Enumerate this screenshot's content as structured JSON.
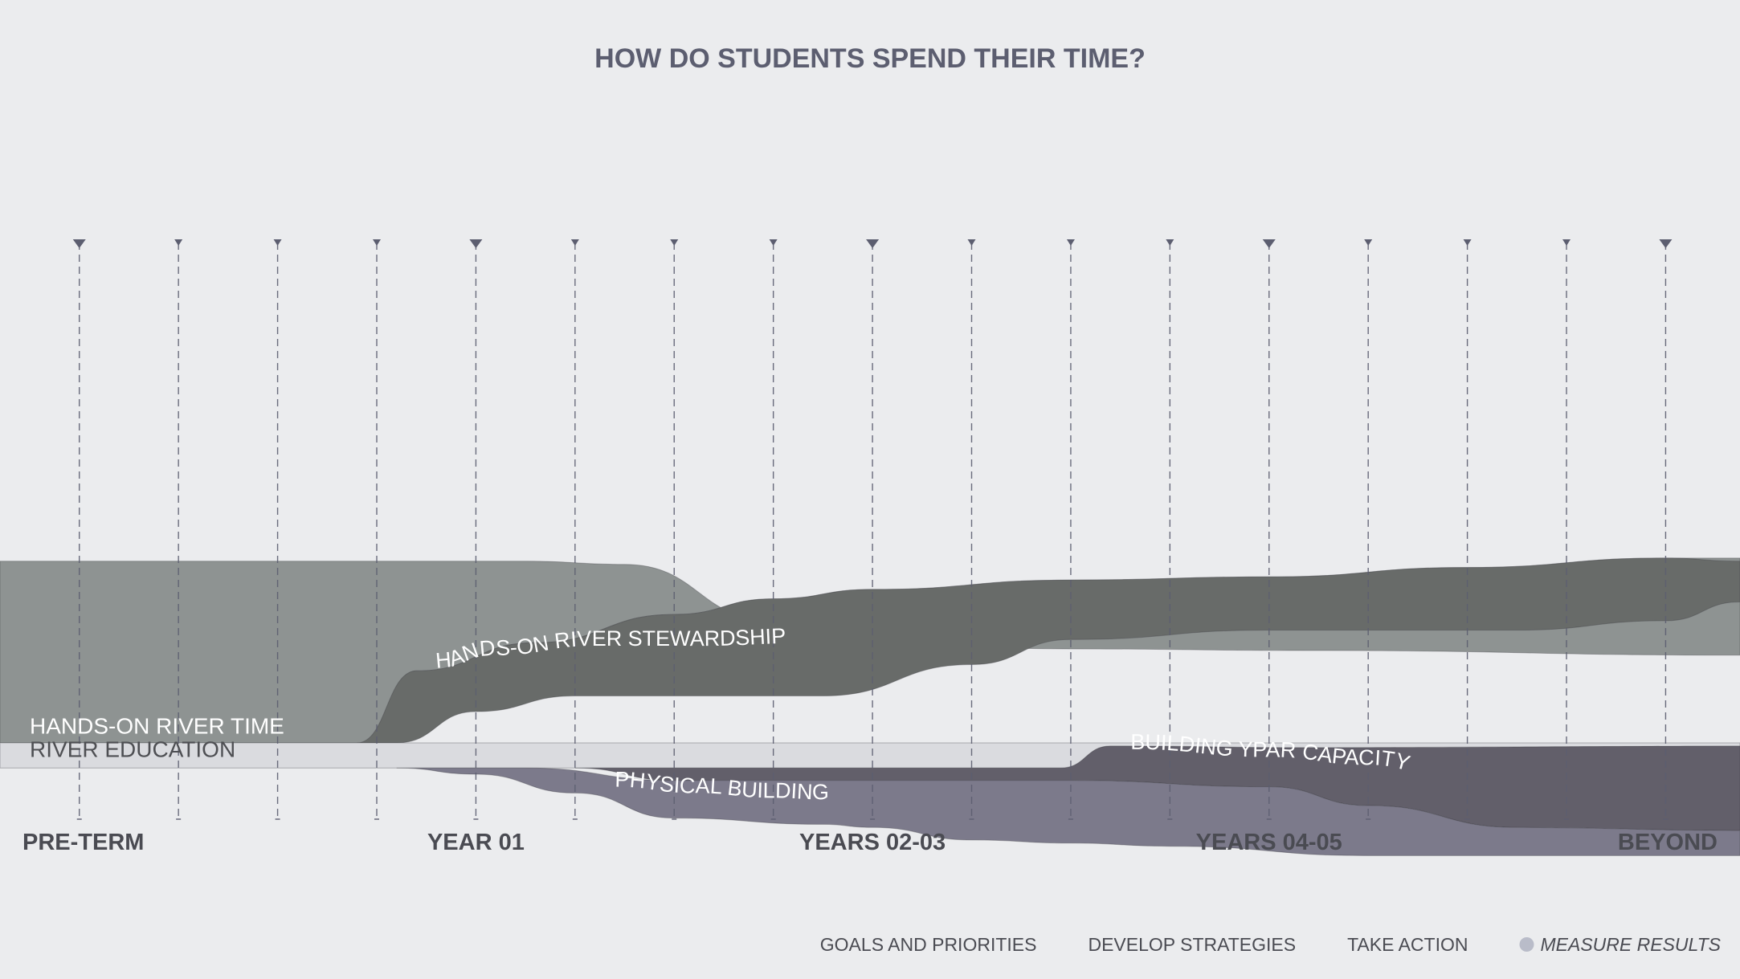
{
  "chart_data": {
    "type": "area",
    "title": "HOW DO STUDENTS SPEND THEIR TIME?",
    "x_labels": [
      {
        "label": "PRE-TERM",
        "x": 0
      },
      {
        "label": "YEAR 01",
        "x": 4
      },
      {
        "label": "YEARS 02-03",
        "x": 8
      },
      {
        "label": "YEARS 04-05",
        "x": 12
      },
      {
        "label": "BEYOND",
        "x": 16
      }
    ],
    "xlim": [
      -0.8,
      16.75
    ],
    "ylim": [
      -1,
      1
    ],
    "series": [
      {
        "name": "HANDS-ON RIVER TIME",
        "color": "#8e9392",
        "text_color": "#ffffff",
        "upper": [
          [
            -0.8,
            0.58
          ],
          [
            4.5,
            0.58
          ],
          [
            5.5,
            0.57
          ],
          [
            7,
            0.39
          ],
          [
            8,
            0.32
          ],
          [
            10,
            0.3
          ],
          [
            12.4,
            0.295
          ],
          [
            16.75,
            0.28
          ]
        ],
        "lower": [
          [
            -0.8,
            0.0
          ],
          [
            2.9,
            0.0
          ],
          [
            3.4,
            0.23
          ],
          [
            4.6,
            0.32
          ],
          [
            6,
            0.41
          ],
          [
            7,
            0.46
          ],
          [
            8,
            0.49
          ],
          [
            10,
            0.52
          ],
          [
            12,
            0.53
          ],
          [
            14,
            0.56
          ],
          [
            16,
            0.59
          ],
          [
            16.75,
            0.59
          ]
        ]
      },
      {
        "name": "HANDS-ON RIVER STEWARDSHIP",
        "color": "#686b69",
        "text_color": "#ffffff",
        "upper": [
          [
            2.8,
            0.0
          ],
          [
            3.4,
            0.23
          ],
          [
            4.6,
            0.32
          ],
          [
            6,
            0.41
          ],
          [
            7,
            0.46
          ],
          [
            8,
            0.49
          ],
          [
            10,
            0.52
          ],
          [
            12,
            0.53
          ],
          [
            14,
            0.56
          ],
          [
            16,
            0.59
          ],
          [
            16.75,
            0.58
          ]
        ],
        "lower": [
          [
            2.8,
            0.0
          ],
          [
            3.2,
            0.0
          ],
          [
            4,
            0.1
          ],
          [
            5,
            0.15
          ],
          [
            7.5,
            0.15
          ],
          [
            9,
            0.25
          ],
          [
            10,
            0.33
          ],
          [
            12,
            0.36
          ],
          [
            14.5,
            0.36
          ],
          [
            16,
            0.39
          ],
          [
            16.75,
            0.45
          ]
        ]
      },
      {
        "name": "RIVER EDUCATION",
        "color": "#dadbdf",
        "text_color": "#4e4f53",
        "upper": [
          [
            -0.8,
            0.0
          ],
          [
            16.75,
            0.0
          ]
        ],
        "lower": [
          [
            -0.8,
            -0.08
          ],
          [
            16.75,
            -0.08
          ]
        ]
      },
      {
        "name": "BUILDING YPAR CAPACITY",
        "color": "#625f6a",
        "text_color": "#ffffff",
        "upper": [
          [
            5,
            -0.08
          ],
          [
            9.9,
            -0.08
          ],
          [
            10.4,
            -0.01
          ],
          [
            12.5,
            -0.015
          ],
          [
            16.75,
            -0.01
          ]
        ],
        "lower": [
          [
            5,
            -0.08
          ],
          [
            6,
            -0.12
          ],
          [
            10,
            -0.12
          ],
          [
            12,
            -0.14
          ],
          [
            13,
            -0.2
          ],
          [
            14.5,
            -0.27
          ],
          [
            16.75,
            -0.28
          ]
        ]
      },
      {
        "name": "PHYSICAL BUILDING",
        "color": "#7c7a8b",
        "text_color": "#ffffff",
        "upper": [
          [
            3.2,
            -0.08
          ],
          [
            3.4,
            -0.08
          ],
          [
            4.5,
            -0.08
          ],
          [
            6,
            -0.12
          ],
          [
            10,
            -0.12
          ],
          [
            12,
            -0.14
          ],
          [
            13,
            -0.2
          ],
          [
            14.5,
            -0.27
          ],
          [
            16.75,
            -0.28
          ]
        ],
        "lower": [
          [
            3.2,
            -0.08
          ],
          [
            4,
            -0.1
          ],
          [
            5,
            -0.16
          ],
          [
            6,
            -0.24
          ],
          [
            7.5,
            -0.26
          ],
          [
            8,
            -0.27
          ],
          [
            9,
            -0.31
          ],
          [
            10,
            -0.32
          ],
          [
            11,
            -0.33
          ],
          [
            13,
            -0.36
          ],
          [
            16.75,
            -0.36
          ]
        ]
      }
    ],
    "series_label_paths": [
      {
        "series": "HANDS-ON RIVER STEWARDSHIP",
        "points": [
          [
            3.6,
            0.24
          ],
          [
            4.2,
            0.28
          ],
          [
            5.2,
            0.31
          ],
          [
            6.2,
            0.31
          ],
          [
            7.5,
            0.32
          ]
        ]
      },
      {
        "series": "PHYSICAL BUILDING",
        "points": [
          [
            5.4,
            -0.14
          ],
          [
            6.2,
            -0.16
          ],
          [
            7,
            -0.175
          ],
          [
            7.5,
            -0.18
          ]
        ]
      },
      {
        "series": "BUILDING YPAR CAPACITY",
        "points": [
          [
            10.6,
            -0.02
          ],
          [
            12,
            -0.045
          ],
          [
            13,
            -0.07
          ],
          [
            13.8,
            -0.11
          ]
        ]
      }
    ],
    "static_labels": [
      {
        "series": "HANDS-ON RIVER TIME",
        "x": -0.5,
        "y": 0.03
      },
      {
        "series": "RIVER EDUCATION",
        "x": -0.5,
        "y": -0.045
      }
    ],
    "milestones": {
      "x": [
        0,
        1,
        2,
        3,
        4,
        5,
        6,
        7,
        8,
        9,
        10,
        11,
        12,
        13,
        14,
        15,
        16
      ],
      "major": [
        0,
        4,
        8,
        12,
        16
      ]
    },
    "grid": false
  },
  "legend": {
    "items": [
      {
        "label": "GOALS AND PRIORITIES",
        "italic": false,
        "dot": false
      },
      {
        "label": "DEVELOP STRATEGIES",
        "italic": false,
        "dot": false
      },
      {
        "label": "TAKE ACTION",
        "italic": false,
        "dot": false
      },
      {
        "label": "MEASURE RESULTS",
        "italic": true,
        "dot": true,
        "dot_color": "#b9bcc9"
      }
    ]
  },
  "colors": {
    "background": "#ebecee",
    "title": "#5c5e70",
    "axis_label": "#4a4b52",
    "milestone_line": "#5c5e70",
    "legend_text": "#4a4b52"
  }
}
